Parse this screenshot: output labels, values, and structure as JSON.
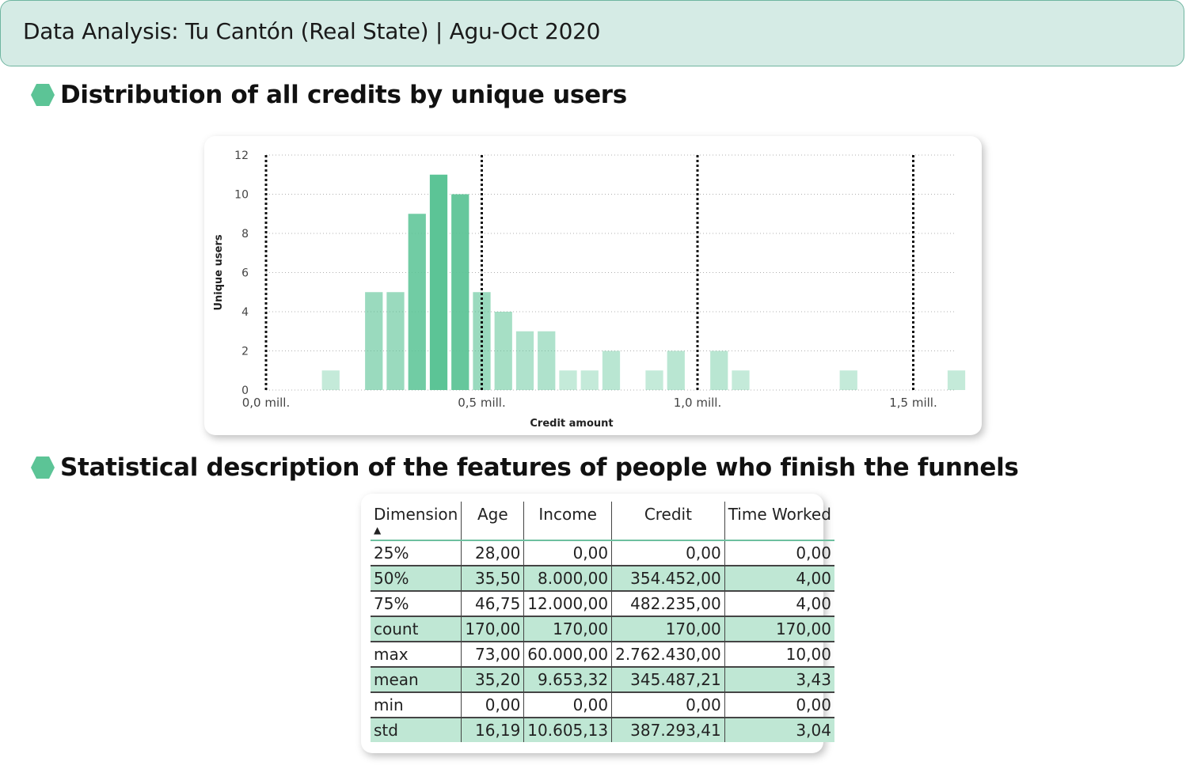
{
  "header": {
    "title": "Data Analysis: Tu Cantón (Real State) | Agu-Oct 2020"
  },
  "sections": [
    {
      "heading": "Distribution of all credits by unique users"
    },
    {
      "heading": "Statistical description of the features of people who finish the funnels"
    }
  ],
  "colors": {
    "accent": "#5cc496",
    "banner_bg": "#d5ebe5",
    "row_highlight": "#bfe7d4"
  },
  "chart_data": {
    "type": "bar",
    "title": "",
    "xlabel": "Credit amount",
    "ylabel": "Unique users",
    "xlim": [
      0,
      1600000
    ],
    "ylim": [
      0,
      12
    ],
    "yticks": [
      0,
      2,
      4,
      6,
      8,
      10,
      12
    ],
    "xticks": [
      {
        "value": 0,
        "label": "0,0 mill."
      },
      {
        "value": 500000,
        "label": "0,5 mill."
      },
      {
        "value": 1000000,
        "label": "1,0 mill."
      },
      {
        "value": 1500000,
        "label": "1,5 mill."
      }
    ],
    "reference_lines": [
      0,
      500000,
      1000000,
      1500000
    ],
    "bin_width": 50000,
    "bins": [
      {
        "x": 150000,
        "value": 1
      },
      {
        "x": 250000,
        "value": 5
      },
      {
        "x": 300000,
        "value": 5
      },
      {
        "x": 350000,
        "value": 9
      },
      {
        "x": 400000,
        "value": 11
      },
      {
        "x": 450000,
        "value": 10
      },
      {
        "x": 500000,
        "value": 5
      },
      {
        "x": 550000,
        "value": 4
      },
      {
        "x": 600000,
        "value": 3
      },
      {
        "x": 650000,
        "value": 3
      },
      {
        "x": 700000,
        "value": 1
      },
      {
        "x": 750000,
        "value": 1
      },
      {
        "x": 800000,
        "value": 2
      },
      {
        "x": 900000,
        "value": 1
      },
      {
        "x": 950000,
        "value": 2
      },
      {
        "x": 1050000,
        "value": 2
      },
      {
        "x": 1100000,
        "value": 1
      },
      {
        "x": 1350000,
        "value": 1
      },
      {
        "x": 1600000,
        "value": 1
      }
    ],
    "grid": true
  },
  "table": {
    "columns": [
      "Dimension",
      "Age",
      "Income",
      "Credit",
      "Time Worked"
    ],
    "sort_indicator": "▲",
    "rows": [
      [
        "25%",
        "28,00",
        "0,00",
        "0,00",
        "0,00"
      ],
      [
        "50%",
        "35,50",
        "8.000,00",
        "354.452,00",
        "4,00"
      ],
      [
        "75%",
        "46,75",
        "12.000,00",
        "482.235,00",
        "4,00"
      ],
      [
        "count",
        "170,00",
        "170,00",
        "170,00",
        "170,00"
      ],
      [
        "max",
        "73,00",
        "60.000,00",
        "2.762.430,00",
        "10,00"
      ],
      [
        "mean",
        "35,20",
        "9.653,32",
        "345.487,21",
        "3,43"
      ],
      [
        "min",
        "0,00",
        "0,00",
        "0,00",
        "0,00"
      ],
      [
        "std",
        "16,19",
        "10.605,13",
        "387.293,41",
        "3,04"
      ]
    ]
  }
}
